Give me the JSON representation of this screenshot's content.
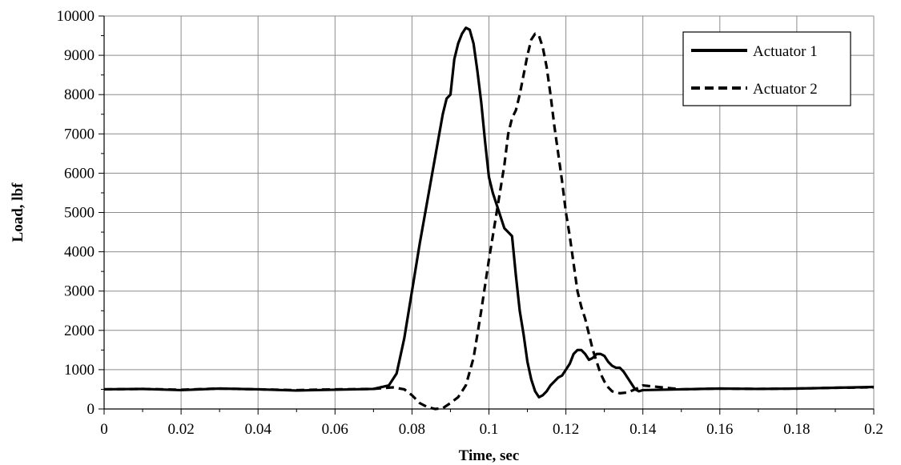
{
  "chart_data": {
    "type": "line",
    "title": "",
    "xlabel": "Time, sec",
    "ylabel": "Load, lbf",
    "xlim": [
      0,
      0.2
    ],
    "ylim": [
      0,
      10000
    ],
    "xticks": [
      0,
      0.02,
      0.04,
      0.06,
      0.08,
      0.1,
      0.12,
      0.14,
      0.16,
      0.18,
      0.2
    ],
    "xtick_labels": [
      "0",
      "0.02",
      "0.04",
      "0.06",
      "0.08",
      "0.1",
      "0.12",
      "0.14",
      "0.16",
      "0.18",
      "0.2"
    ],
    "yticks": [
      0,
      1000,
      2000,
      3000,
      4000,
      5000,
      6000,
      7000,
      8000,
      9000,
      10000
    ],
    "ytick_labels": [
      "0",
      "1000",
      "2000",
      "3000",
      "4000",
      "5000",
      "6000",
      "7000",
      "8000",
      "9000",
      "10000"
    ],
    "grid": true,
    "legend_position": "top-right",
    "series": [
      {
        "name": "Actuator 1",
        "style": "solid",
        "color": "#000000",
        "x": [
          0,
          0.01,
          0.02,
          0.03,
          0.04,
          0.05,
          0.06,
          0.07,
          0.074,
          0.076,
          0.078,
          0.08,
          0.082,
          0.084,
          0.086,
          0.088,
          0.089,
          0.09,
          0.091,
          0.092,
          0.093,
          0.094,
          0.095,
          0.096,
          0.097,
          0.098,
          0.099,
          0.1,
          0.101,
          0.102,
          0.103,
          0.104,
          0.105,
          0.106,
          0.107,
          0.108,
          0.109,
          0.11,
          0.111,
          0.112,
          0.113,
          0.114,
          0.115,
          0.116,
          0.117,
          0.118,
          0.119,
          0.12,
          0.121,
          0.122,
          0.123,
          0.124,
          0.125,
          0.126,
          0.127,
          0.128,
          0.129,
          0.13,
          0.131,
          0.132,
          0.133,
          0.134,
          0.135,
          0.136,
          0.137,
          0.138,
          0.139,
          0.14,
          0.15,
          0.16,
          0.17,
          0.18,
          0.19,
          0.2
        ],
        "y": [
          500,
          510,
          480,
          520,
          500,
          470,
          490,
          510,
          600,
          900,
          1800,
          3000,
          4200,
          5300,
          6400,
          7500,
          7900,
          8000,
          8900,
          9300,
          9550,
          9700,
          9650,
          9300,
          8600,
          7800,
          6800,
          5900,
          5500,
          5200,
          4900,
          4600,
          4500,
          4400,
          3400,
          2500,
          1900,
          1200,
          750,
          450,
          300,
          350,
          450,
          600,
          700,
          800,
          850,
          1000,
          1150,
          1400,
          1500,
          1500,
          1400,
          1250,
          1300,
          1400,
          1400,
          1350,
          1200,
          1100,
          1050,
          1050,
          950,
          800,
          650,
          500,
          450,
          480,
          500,
          520,
          510,
          520,
          540,
          560
        ]
      },
      {
        "name": "Actuator 2",
        "style": "dashed",
        "color": "#000000",
        "x": [
          0,
          0.01,
          0.02,
          0.03,
          0.04,
          0.05,
          0.06,
          0.07,
          0.075,
          0.078,
          0.08,
          0.082,
          0.084,
          0.086,
          0.088,
          0.09,
          0.092,
          0.094,
          0.096,
          0.098,
          0.1,
          0.102,
          0.104,
          0.105,
          0.106,
          0.107,
          0.108,
          0.109,
          0.11,
          0.111,
          0.112,
          0.113,
          0.114,
          0.115,
          0.116,
          0.117,
          0.118,
          0.119,
          0.12,
          0.121,
          0.122,
          0.123,
          0.124,
          0.125,
          0.126,
          0.127,
          0.128,
          0.129,
          0.13,
          0.131,
          0.132,
          0.134,
          0.136,
          0.138,
          0.14,
          0.145,
          0.15,
          0.16,
          0.17,
          0.18,
          0.19,
          0.2
        ],
        "y": [
          500,
          510,
          490,
          520,
          500,
          480,
          500,
          510,
          550,
          500,
          350,
          150,
          50,
          0,
          20,
          150,
          300,
          600,
          1300,
          2500,
          3800,
          5000,
          6200,
          7000,
          7400,
          7600,
          8000,
          8500,
          9000,
          9400,
          9550,
          9500,
          9200,
          8700,
          8000,
          7200,
          6500,
          5800,
          5000,
          4400,
          3700,
          3000,
          2600,
          2300,
          1900,
          1500,
          1200,
          900,
          700,
          550,
          450,
          400,
          420,
          500,
          600,
          550,
          500,
          520,
          510,
          520,
          540,
          550
        ]
      }
    ]
  }
}
